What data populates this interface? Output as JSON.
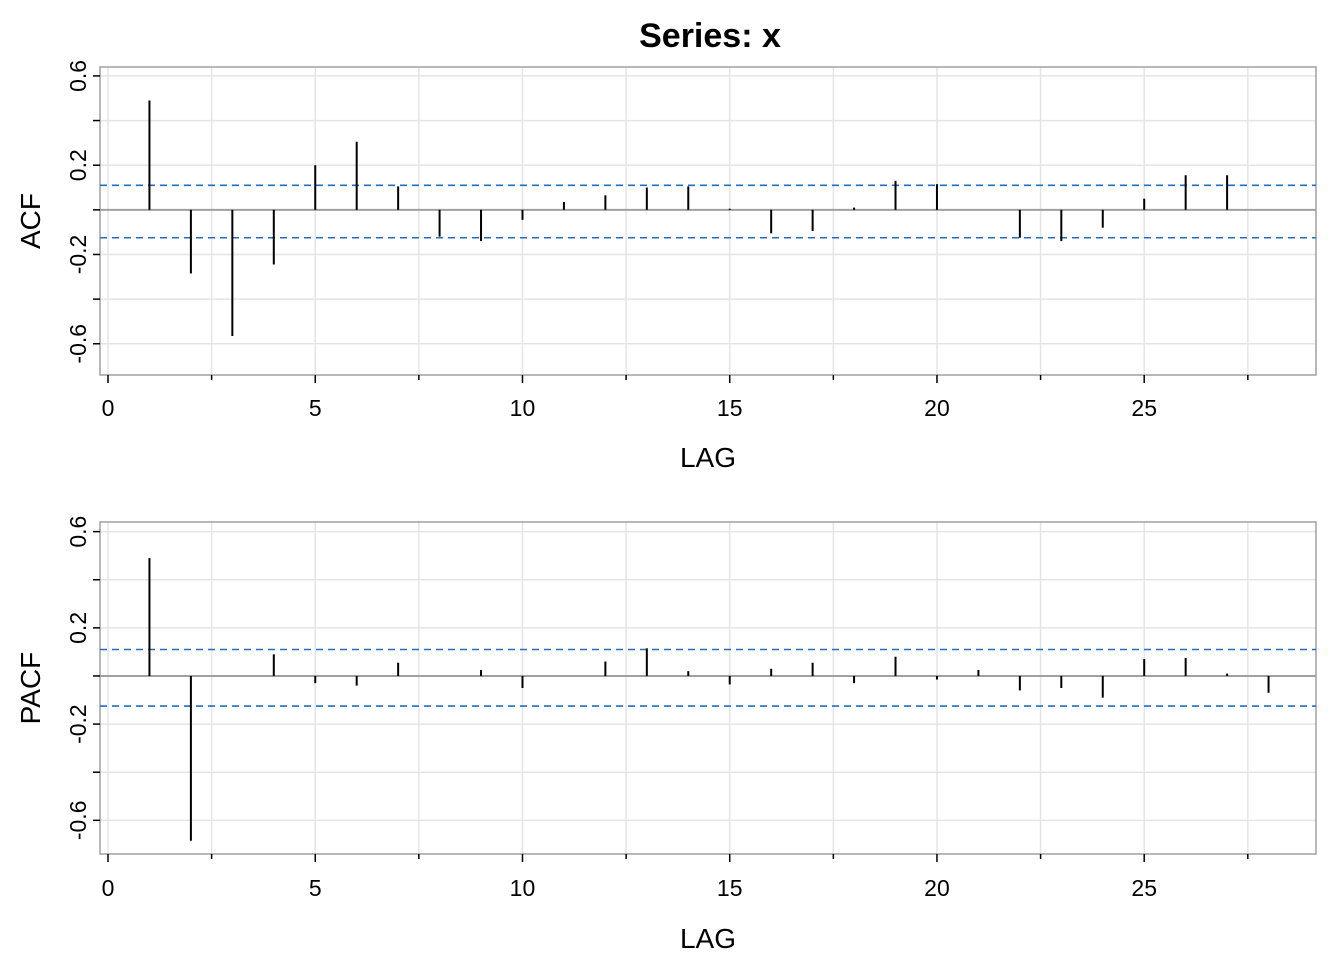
{
  "title": "Series:  x",
  "colors": {
    "background": "#ffffff",
    "grid": "#e5e5e5",
    "frame": "#a0a0a0",
    "zero_line": "#a0a0a0",
    "bars": "#000000",
    "confidence": "#1f6fc5"
  },
  "chart_data": [
    {
      "type": "bar",
      "subtype": "correlogram",
      "xlabel": "LAG",
      "ylabel": "ACF",
      "xlim": [
        0,
        29
      ],
      "ylim": [
        -0.74,
        0.64
      ],
      "x_ticks": [
        0,
        5,
        10,
        15,
        20,
        25
      ],
      "y_ticks": [
        -0.6,
        -0.2,
        0.2,
        0.6
      ],
      "y_tick_labels": [
        "-0.6",
        "-0.2",
        "0.2",
        "0.6"
      ],
      "confidence_bounds": [
        0.11,
        -0.125
      ],
      "grid": true,
      "x": [
        1,
        2,
        3,
        4,
        5,
        6,
        7,
        8,
        9,
        10,
        11,
        12,
        13,
        14,
        15,
        16,
        17,
        18,
        19,
        20,
        21,
        22,
        23,
        24,
        25,
        26,
        27
      ],
      "values": [
        0.49,
        -0.285,
        -0.565,
        -0.245,
        0.2,
        0.305,
        0.105,
        -0.12,
        -0.14,
        -0.045,
        0.035,
        0.065,
        0.1,
        0.105,
        0.005,
        -0.105,
        -0.095,
        0.01,
        0.13,
        0.115,
        0.0,
        -0.125,
        -0.14,
        -0.08,
        0.05,
        0.155,
        0.155
      ]
    },
    {
      "type": "bar",
      "subtype": "correlogram",
      "xlabel": "LAG",
      "ylabel": "PACF",
      "xlim": [
        0,
        29
      ],
      "ylim": [
        -0.74,
        0.64
      ],
      "x_ticks": [
        0,
        5,
        10,
        15,
        20,
        25
      ],
      "y_ticks": [
        -0.6,
        -0.2,
        0.2,
        0.6
      ],
      "y_tick_labels": [
        "-0.6",
        "-0.2",
        "0.2",
        "0.6"
      ],
      "confidence_bounds": [
        0.11,
        -0.125
      ],
      "grid": true,
      "x": [
        1,
        2,
        3,
        4,
        5,
        6,
        7,
        8,
        9,
        10,
        11,
        12,
        13,
        14,
        15,
        16,
        17,
        18,
        19,
        20,
        21,
        22,
        23,
        24,
        25,
        26,
        27,
        28
      ],
      "values": [
        0.49,
        -0.685,
        0.0,
        0.09,
        -0.03,
        -0.04,
        0.055,
        0.0,
        0.025,
        -0.05,
        0.0,
        0.06,
        0.115,
        0.02,
        -0.035,
        0.03,
        0.055,
        -0.03,
        0.08,
        -0.015,
        0.025,
        -0.06,
        -0.05,
        -0.09,
        0.07,
        0.075,
        0.01,
        -0.07
      ]
    }
  ]
}
